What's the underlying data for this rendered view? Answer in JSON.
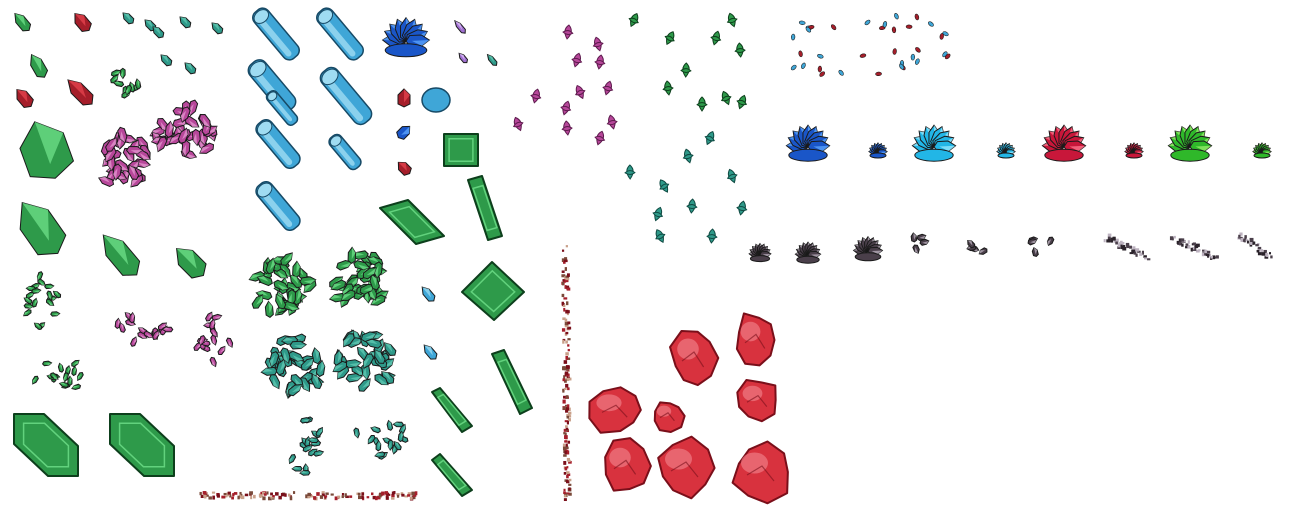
{
  "palette": {
    "background": "#ffffff",
    "emerald": "#2e9a4a",
    "emerald_light": "#6fe08a",
    "emerald_dark": "#0d3f1c",
    "ruby": "#a51e2a",
    "ruby_light": "#e7444f",
    "ruby_dark": "#5a0c14",
    "rose": "#b7479a",
    "rose_dark": "#5e1b4e",
    "teal": "#2f9a8a",
    "teal_light": "#63c9b3",
    "teal_dark": "#0f4a42",
    "aqua": "#3fa6d7",
    "aqua_light": "#9fdcf2",
    "aqua_dark": "#174a66",
    "sapphire": "#1a56c8",
    "sapphire_light": "#5fa8ff",
    "cyan": "#22b6e6",
    "cyan_light": "#9aeaff",
    "crimson": "#c8173a",
    "lime": "#2fb82a",
    "lime_light": "#9cf06e",
    "obsidian": "#4a3f4a",
    "obsidian_light": "#bdb3c0",
    "rock_red": "#d8323e",
    "rock_red_light": "#f07a84",
    "rock_red_dark": "#7a0f1a",
    "outline": "#1a1a1a"
  },
  "sprite_groups": [
    {
      "name": "emerald-shard-cluster",
      "color": "emerald"
    },
    {
      "name": "ruby-shard-cluster",
      "color": "ruby"
    },
    {
      "name": "aqua-crystal-pillars",
      "color": "aqua"
    },
    {
      "name": "sapphire-geode",
      "color": "sapphire"
    },
    {
      "name": "rose-leaf-scatter",
      "color": "rose"
    },
    {
      "name": "green-leaf-scatter",
      "color": "emerald"
    },
    {
      "name": "teal-leaf-scatter",
      "color": "teal"
    },
    {
      "name": "mixed-gem-particles",
      "color": "aqua"
    },
    {
      "name": "gem-cluster-variants",
      "color": "sapphire"
    },
    {
      "name": "obsidian-debris",
      "color": "obsidian"
    },
    {
      "name": "emerald-tiles",
      "color": "emerald"
    },
    {
      "name": "red-rock-boulders",
      "color": "rock_red"
    },
    {
      "name": "rubble-strips",
      "color": "ruby"
    }
  ]
}
